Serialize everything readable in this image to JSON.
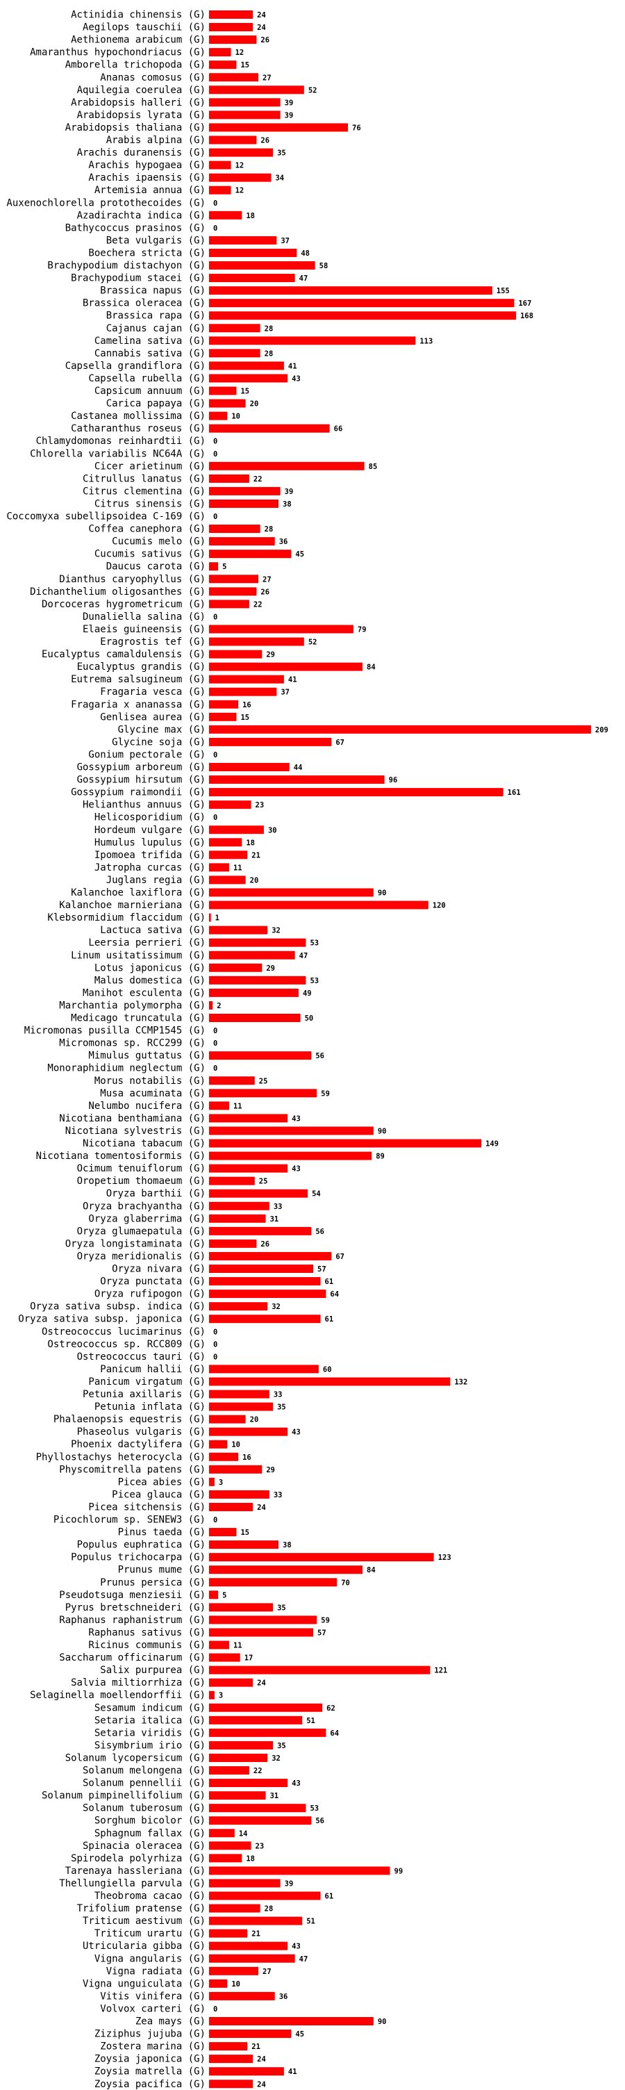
{
  "chart_data": {
    "type": "bar",
    "orientation": "horizontal",
    "title": "",
    "xlabel": "",
    "ylabel": "",
    "grid": false,
    "colors": {
      "bar": "#ff0000",
      "text": "#000000",
      "background": "#ffffff"
    },
    "categories": [
      "Actinidia chinensis (G)",
      "Aegilops tauschii (G)",
      "Aethionema arabicum (G)",
      "Amaranthus hypochondriacus (G)",
      "Amborella trichopoda (G)",
      "Ananas comosus (G)",
      "Aquilegia coerulea (G)",
      "Arabidopsis halleri (G)",
      "Arabidopsis lyrata (G)",
      "Arabidopsis thaliana (G)",
      "Arabis alpina (G)",
      "Arachis duranensis (G)",
      "Arachis hypogaea (G)",
      "Arachis ipaensis (G)",
      "Artemisia annua (G)",
      "Auxenochlorella protothecoides (G)",
      "Azadirachta indica (G)",
      "Bathycoccus prasinos (G)",
      "Beta vulgaris (G)",
      "Boechera stricta (G)",
      "Brachypodium distachyon (G)",
      "Brachypodium stacei (G)",
      "Brassica napus (G)",
      "Brassica oleracea (G)",
      "Brassica rapa (G)",
      "Cajanus cajan (G)",
      "Camelina sativa (G)",
      "Cannabis sativa (G)",
      "Capsella grandiflora (G)",
      "Capsella rubella (G)",
      "Capsicum annuum (G)",
      "Carica papaya (G)",
      "Castanea mollissima (G)",
      "Catharanthus roseus (G)",
      "Chlamydomonas reinhardtii (G)",
      "Chlorella variabilis NC64A (G)",
      "Cicer arietinum (G)",
      "Citrullus lanatus (G)",
      "Citrus clementina (G)",
      "Citrus sinensis (G)",
      "Coccomyxa subellipsoidea C-169 (G)",
      "Coffea canephora (G)",
      "Cucumis melo (G)",
      "Cucumis sativus (G)",
      "Daucus carota (G)",
      "Dianthus caryophyllus (G)",
      "Dichanthelium oligosanthes (G)",
      "Dorcoceras hygrometricum (G)",
      "Dunaliella salina (G)",
      "Elaeis guineensis (G)",
      "Eragrostis tef (G)",
      "Eucalyptus camaldulensis (G)",
      "Eucalyptus grandis (G)",
      "Eutrema salsugineum (G)",
      "Fragaria vesca (G)",
      "Fragaria x ananassa (G)",
      "Genlisea aurea (G)",
      "Glycine max (G)",
      "Glycine soja (G)",
      "Gonium pectorale (G)",
      "Gossypium arboreum (G)",
      "Gossypium hirsutum (G)",
      "Gossypium raimondii (G)",
      "Helianthus annuus (G)",
      "Helicosporidium (G)",
      "Hordeum vulgare (G)",
      "Humulus lupulus (G)",
      "Ipomoea trifida (G)",
      "Jatropha curcas (G)",
      "Juglans regia (G)",
      "Kalanchoe laxiflora (G)",
      "Kalanchoe marnieriana (G)",
      "Klebsormidium flaccidum (G)",
      "Lactuca sativa (G)",
      "Leersia perrieri (G)",
      "Linum usitatissimum (G)",
      "Lotus japonicus (G)",
      "Malus domestica (G)",
      "Manihot esculenta (G)",
      "Marchantia polymorpha (G)",
      "Medicago truncatula (G)",
      "Micromonas pusilla CCMP1545 (G)",
      "Micromonas sp. RCC299 (G)",
      "Mimulus guttatus (G)",
      "Monoraphidium neglectum (G)",
      "Morus notabilis (G)",
      "Musa acuminata (G)",
      "Nelumbo nucifera (G)",
      "Nicotiana benthamiana (G)",
      "Nicotiana sylvestris (G)",
      "Nicotiana tabacum (G)",
      "Nicotiana tomentosiformis (G)",
      "Ocimum tenuiflorum (G)",
      "Oropetium thomaeum (G)",
      "Oryza barthii (G)",
      "Oryza brachyantha (G)",
      "Oryza glaberrima (G)",
      "Oryza glumaepatula (G)",
      "Oryza longistaminata (G)",
      "Oryza meridionalis (G)",
      "Oryza nivara (G)",
      "Oryza punctata (G)",
      "Oryza rufipogon (G)",
      "Oryza sativa subsp. indica (G)",
      "Oryza sativa subsp. japonica (G)",
      "Ostreococcus lucimarinus (G)",
      "Ostreococcus sp. RCC809 (G)",
      "Ostreococcus tauri (G)",
      "Panicum hallii (G)",
      "Panicum virgatum (G)",
      "Petunia axillaris (G)",
      "Petunia inflata (G)",
      "Phalaenopsis equestris (G)",
      "Phaseolus vulgaris (G)",
      "Phoenix dactylifera (G)",
      "Phyllostachys heterocycla (G)",
      "Physcomitrella patens (G)",
      "Picea abies (G)",
      "Picea glauca (G)",
      "Picea sitchensis (G)",
      "Picochlorum sp. SENEW3 (G)",
      "Pinus taeda (G)",
      "Populus euphratica (G)",
      "Populus trichocarpa (G)",
      "Prunus mume (G)",
      "Prunus persica (G)",
      "Pseudotsuga menziesii (G)",
      "Pyrus bretschneideri (G)",
      "Raphanus raphanistrum (G)",
      "Raphanus sativus (G)",
      "Ricinus communis (G)",
      "Saccharum officinarum (G)",
      "Salix purpurea (G)",
      "Salvia miltiorrhiza (G)",
      "Selaginella moellendorffii (G)",
      "Sesamum indicum (G)",
      "Setaria italica (G)",
      "Setaria viridis (G)",
      "Sisymbrium irio (G)",
      "Solanum lycopersicum (G)",
      "Solanum melongena (G)",
      "Solanum pennellii (G)",
      "Solanum pimpinellifolium (G)",
      "Solanum tuberosum (G)",
      "Sorghum bicolor (G)",
      "Sphagnum fallax (G)",
      "Spinacia oleracea (G)",
      "Spirodela polyrhiza (G)",
      "Tarenaya hassleriana (G)",
      "Thellungiella parvula (G)",
      "Theobroma cacao (G)",
      "Trifolium pratense (G)",
      "Triticum aestivum (G)",
      "Triticum urartu (G)",
      "Utricularia gibba (G)",
      "Vigna angularis (G)",
      "Vigna radiata (G)",
      "Vigna unguiculata (G)",
      "Vitis vinifera (G)",
      "Volvox carteri (G)",
      "Zea mays (G)",
      "Ziziphus jujuba (G)",
      "Zostera marina (G)",
      "Zoysia japonica (G)",
      "Zoysia matrella (G)",
      "Zoysia pacifica (G)"
    ],
    "values": [
      24,
      24,
      26,
      12,
      15,
      27,
      52,
      39,
      39,
      76,
      26,
      35,
      12,
      34,
      12,
      0,
      18,
      0,
      37,
      48,
      58,
      47,
      155,
      167,
      168,
      28,
      113,
      28,
      41,
      43,
      15,
      20,
      10,
      66,
      0,
      0,
      85,
      22,
      39,
      38,
      0,
      28,
      36,
      45,
      5,
      27,
      26,
      22,
      0,
      79,
      52,
      29,
      84,
      41,
      37,
      16,
      15,
      209,
      67,
      0,
      44,
      96,
      161,
      23,
      0,
      30,
      18,
      21,
      11,
      20,
      90,
      120,
      1,
      32,
      53,
      47,
      29,
      53,
      49,
      2,
      50,
      0,
      0,
      56,
      0,
      25,
      59,
      11,
      43,
      90,
      149,
      89,
      43,
      25,
      54,
      33,
      31,
      56,
      26,
      67,
      57,
      61,
      64,
      32,
      61,
      0,
      0,
      0,
      60,
      132,
      33,
      35,
      20,
      43,
      10,
      16,
      29,
      3,
      33,
      24,
      0,
      15,
      38,
      123,
      84,
      70,
      5,
      35,
      59,
      57,
      11,
      17,
      121,
      24,
      3,
      62,
      51,
      64,
      35,
      32,
      22,
      43,
      31,
      53,
      56,
      14,
      23,
      18,
      99,
      39,
      61,
      28,
      51,
      21,
      43,
      47,
      27,
      10,
      36,
      0,
      90,
      45,
      21,
      24,
      41,
      24
    ],
    "xlim": [
      0,
      209
    ]
  }
}
